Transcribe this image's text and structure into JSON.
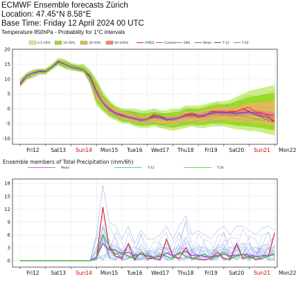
{
  "header": {
    "line1": "ECMWF Ensemble forecasts Zürich",
    "line2": "Location:  47.45°N 8.58°E",
    "line3": "Base Time: Friday 12 April 2024 00 UTC",
    "subtitle": "Temperature 850hPa - Probability for 1°C intervals"
  },
  "colors": {
    "band1": "#ccee88",
    "band2": "#99dd22",
    "band3": "#ddbb55",
    "band4": "#ee8866",
    "hires": "#cc2233",
    "control": "#ff3366",
    "ens": "#6688dd",
    "mean": "#aa44cc",
    "t12": "#3355bb",
    "t24": "#44bb44",
    "sunday": "#cc0000"
  },
  "day_labels": [
    "Fri12",
    "Sat13",
    "Sun14",
    "Mon15",
    "Tue16",
    "Wed17",
    "Thu18",
    "Fri19",
    "Sat20",
    "Sun21",
    "Mon22"
  ],
  "sunday_labels": [
    "Sun14",
    "Sun21"
  ],
  "chart_data": [
    {
      "type": "area",
      "title": "Temperature 850hPa - Probability for 1°C intervals",
      "ylim": [
        -12,
        20
      ],
      "yticks": [
        -10,
        -5,
        0,
        5,
        10,
        15,
        20
      ],
      "x_unit": "days after Fri12 00 UTC",
      "xlim": [
        -0.3,
        10.1
      ],
      "grid": true,
      "legend_position": "top",
      "legend": [
        {
          "name": "0.5-10%",
          "kind": "swatch",
          "color": "#ccee88"
        },
        {
          "name": "10-30%",
          "kind": "swatch",
          "color": "#99dd22"
        },
        {
          "name": "30-50%",
          "kind": "swatch",
          "color": "#ddbb55"
        },
        {
          "name": "50-100%",
          "kind": "swatch",
          "color": "#ee8866"
        },
        {
          "name": "HIRES",
          "kind": "line",
          "color": "#cc2233"
        },
        {
          "name": "Control",
          "kind": "line",
          "color": "#ff3366"
        },
        {
          "name": "ENS",
          "kind": "line",
          "color": "#6688dd"
        },
        {
          "name": "Mean",
          "kind": "line",
          "color": "#aa44cc"
        },
        {
          "name": "T-12",
          "kind": "line",
          "color": "#3355bb"
        },
        {
          "name": "T-24",
          "kind": "line",
          "color": "#44bb44"
        }
      ],
      "x": [
        0,
        0.25,
        0.5,
        0.75,
        1,
        1.25,
        1.5,
        1.75,
        2,
        2.25,
        2.5,
        2.75,
        3,
        3.25,
        3.5,
        3.75,
        4,
        4.25,
        4.5,
        4.75,
        5,
        5.25,
        5.5,
        5.75,
        6,
        6.25,
        6.5,
        6.75,
        7,
        7.25,
        7.5,
        7.75,
        8,
        8.25,
        8.5,
        8.75,
        9,
        9.25,
        9.5,
        9.75,
        10
      ],
      "outer_low": [
        7,
        9.5,
        10.5,
        11.5,
        11.5,
        13,
        14.5,
        13.5,
        13,
        12.5,
        12,
        8,
        1,
        -1,
        -3,
        -4,
        -5,
        -5,
        -6,
        -6.5,
        -6.5,
        -6,
        -6.5,
        -7,
        -7.5,
        -7,
        -6.5,
        -6,
        -6.5,
        -6.5,
        -6,
        -6,
        -6,
        -6.5,
        -7,
        -7,
        -7.5,
        -7.5,
        -8,
        -8.5,
        -9
      ],
      "outer_high": [
        10,
        12,
        13,
        13.5,
        13.5,
        15,
        17,
        16.5,
        15.5,
        15,
        15,
        13,
        10,
        6,
        3,
        1,
        0,
        0,
        0,
        -0.5,
        -0.5,
        0,
        -0.5,
        -0.5,
        0,
        0,
        1,
        1,
        1,
        1.5,
        2,
        2.5,
        2.5,
        3,
        4,
        5,
        6,
        6.5,
        7,
        7.5,
        8
      ],
      "inner_low": [
        8,
        10.5,
        11.5,
        12,
        12,
        14,
        15.5,
        14.5,
        13.5,
        13,
        12.5,
        9.5,
        3.5,
        0.5,
        -1.5,
        -2.5,
        -3.5,
        -4,
        -4.5,
        -5,
        -5,
        -4.5,
        -5,
        -5,
        -5.5,
        -5,
        -4.5,
        -4.5,
        -4.5,
        -4.5,
        -4,
        -4,
        -4,
        -4,
        -4.5,
        -4.5,
        -4.5,
        -5,
        -5,
        -5.5,
        -5.5
      ],
      "inner_high": [
        9,
        11.5,
        12.5,
        13,
        13,
        14.5,
        16,
        15.5,
        14.5,
        14,
        13.5,
        11.5,
        7.5,
        3.5,
        1.5,
        0,
        -1,
        -1.5,
        -2,
        -2.5,
        -2.5,
        -2,
        -2.5,
        -2.5,
        -2.5,
        -2,
        -1,
        -1,
        -1,
        -0.5,
        0,
        0.5,
        0.5,
        0.5,
        1,
        1.5,
        2,
        2,
        2.5,
        2.5,
        3
      ],
      "series": [
        {
          "name": "HIRES",
          "color": "#cc2233",
          "values": [
            8,
            11,
            12,
            12.5,
            12.5,
            14,
            16,
            15,
            14,
            13.5,
            13,
            11,
            6,
            2,
            0,
            -1.5,
            -2,
            -3,
            -3.5,
            -4,
            -3.5,
            -2,
            -2.5,
            -3.5,
            -3.5,
            -3,
            -2,
            -1.5,
            -2.5,
            -2.5,
            -1,
            -1,
            -1.5,
            -1,
            -1,
            0,
            -1,
            -2,
            -2.5,
            -3,
            -4.5
          ]
        },
        {
          "name": "Control",
          "color": "#ff3366",
          "values": [
            8,
            11,
            12,
            12.5,
            12.5,
            14,
            16,
            15,
            14,
            13.5,
            13,
            10.5,
            6,
            2,
            0,
            -1.5,
            -2.5,
            -3,
            -3.5,
            -4,
            -3.5,
            -2.5,
            -3,
            -4,
            -3.5,
            -3,
            -2,
            -2,
            -3,
            -2.5,
            -1.5,
            -1,
            -1,
            -1.5,
            -1,
            0,
            0.5,
            -1,
            -1.5,
            -2.5,
            -4
          ]
        },
        {
          "name": "Mean",
          "color": "#aa44cc",
          "values": [
            8.5,
            11,
            12,
            12.5,
            12.5,
            14,
            15.7,
            15,
            14,
            13.5,
            13,
            10.5,
            5.5,
            2,
            -0.2,
            -1.5,
            -2.3,
            -2.8,
            -3.3,
            -3.8,
            -3.5,
            -2.8,
            -3,
            -3.5,
            -3.5,
            -3,
            -2.4,
            -2.3,
            -2.4,
            -2.2,
            -1.7,
            -1.4,
            -1.4,
            -1.5,
            -1.5,
            -1.3,
            -1.2,
            -1.4,
            -1.7,
            -2,
            -2.3
          ]
        },
        {
          "name": "T-12",
          "color": "#3355bb",
          "values": [
            null,
            null,
            12,
            12.5,
            12.5,
            14,
            15.7,
            15,
            14,
            13.5,
            13,
            10.5,
            5.5,
            2,
            -0.5,
            -1.8,
            -2.5,
            -3,
            -3.5,
            -4,
            -3.6,
            -2.8,
            -3,
            -3.7,
            -3.8,
            -3.2,
            -2.5,
            -2.2,
            -2.5,
            -2,
            -1.5,
            -1.2,
            -1.2,
            -1.5,
            -1.8,
            -1.5,
            -1,
            -2,
            -3,
            -4,
            -4.5
          ]
        },
        {
          "name": "T-24",
          "color": "#44bb44",
          "values": [
            null,
            null,
            null,
            null,
            12.5,
            14,
            15.7,
            15,
            14,
            13.5,
            13,
            10.5,
            5.5,
            2,
            -0.5,
            -1.8,
            -2.5,
            -3,
            -3.5,
            -4,
            -3.5,
            -3,
            -3.2,
            -3.8,
            -3.8,
            -3.2,
            -2.6,
            -2.4,
            -2.6,
            -2,
            -1.3,
            -1.5,
            -2,
            -2.5,
            -2.2,
            -2.5,
            -3,
            -3.5,
            -4,
            -3.5,
            -3
          ]
        }
      ]
    },
    {
      "type": "line",
      "title": "Ensemble members of Total Precipitation (mm/6h)",
      "ylim": [
        -1.5,
        19
      ],
      "yticks": [
        0,
        3,
        6,
        9,
        12,
        15,
        18
      ],
      "x_unit": "days after Fri12 00 UTC",
      "xlim": [
        -0.3,
        10.1
      ],
      "grid": true,
      "legend_position": "top",
      "legend": [
        {
          "name": "Mean",
          "kind": "line",
          "color": "#aa44cc"
        },
        {
          "name": "T-12",
          "kind": "line",
          "color": "#44bb44"
        },
        {
          "name": "T-24",
          "kind": "line",
          "color": "#44bb44"
        }
      ],
      "x": [
        0,
        0.25,
        0.5,
        0.75,
        1,
        1.25,
        1.5,
        1.75,
        2,
        2.25,
        2.5,
        2.75,
        3,
        3.25,
        3.5,
        3.75,
        4,
        4.25,
        4.5,
        4.75,
        5,
        5.25,
        5.5,
        5.75,
        6,
        6.25,
        6.5,
        6.75,
        7,
        7.25,
        7.5,
        7.75,
        8,
        8.25,
        8.5,
        8.75,
        9,
        9.25,
        9.5,
        9.75,
        10
      ],
      "envelope_max": [
        0,
        0,
        0,
        0,
        0,
        0,
        0,
        0,
        0,
        0,
        0,
        0,
        6,
        17.5,
        9,
        8,
        5,
        8,
        4,
        7,
        5,
        5,
        6,
        8,
        5,
        8,
        10.5,
        6,
        7,
        6,
        5,
        7,
        8,
        6,
        8,
        8,
        7,
        6,
        7.5,
        8,
        7
      ],
      "series": [
        {
          "name": "Mean",
          "color": "#aa44cc",
          "values": [
            0,
            0,
            0,
            0,
            0,
            0,
            0,
            0,
            0,
            0,
            0,
            0,
            0.8,
            4,
            2.5,
            2.5,
            1.5,
            2,
            1.2,
            1.5,
            1.2,
            0.8,
            1,
            1.8,
            1.2,
            1.5,
            2.2,
            1.2,
            1.3,
            1,
            0.9,
            1.2,
            1.5,
            1.1,
            1.3,
            1.5,
            1.3,
            1,
            1.1,
            1.2,
            1.5
          ]
        },
        {
          "name": "Control",
          "color": "#cc2233",
          "values": [
            0,
            0,
            0,
            0,
            0,
            0,
            0,
            0,
            0,
            0,
            0,
            0,
            0.5,
            12.5,
            3,
            1,
            0.5,
            4,
            0.2,
            2,
            0.5,
            0.5,
            0.3,
            5,
            1,
            0.5,
            3,
            0.5,
            0.3,
            0.2,
            0.5,
            2,
            0.5,
            0.3,
            4,
            0.5,
            1,
            0.3,
            0.5,
            1,
            6.5
          ]
        },
        {
          "name": "T-12",
          "color": "#44bb44",
          "values": [
            0,
            0,
            0,
            0,
            0,
            0,
            0,
            0,
            0,
            0,
            0,
            0,
            0.5,
            6,
            3.5,
            1.5,
            2,
            1,
            0.5,
            2,
            1,
            0.5,
            1.5,
            1,
            0.5,
            2,
            1,
            0.5,
            1,
            1.5,
            0.5,
            1,
            2,
            0.5,
            1,
            1.5,
            0.5,
            1,
            0.5,
            1,
            1.5
          ]
        }
      ]
    }
  ]
}
